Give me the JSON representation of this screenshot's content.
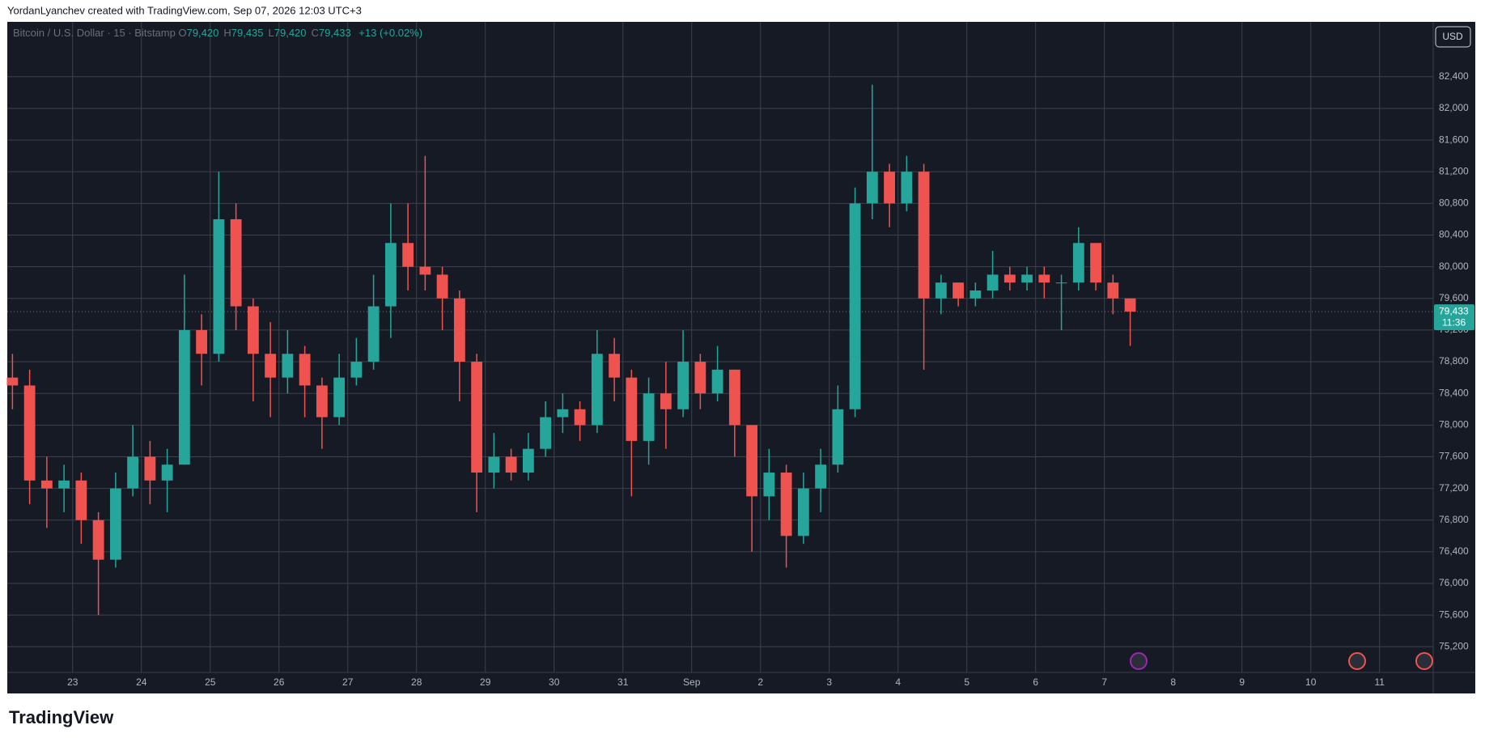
{
  "header": {
    "credit": "YordanLyanchev created with TradingView.com, Sep 07, 2026 12:03 UTC+3",
    "logo": "TradingView"
  },
  "chart_data": {
    "type": "candlestick",
    "symbol": "Bitcoin / U.S. Dollar · 15 · Bitstamp",
    "ohlc_legend": [
      {
        "label": "O",
        "value": "79,420"
      },
      {
        "label": "H",
        "value": "79,435"
      },
      {
        "label": "L",
        "value": "79,420"
      },
      {
        "label": "C",
        "value": "79,433"
      }
    ],
    "change": "+13 (+0.02%)",
    "currency": "USD",
    "last_price": {
      "value": 79433,
      "label": "79,433"
    },
    "countdown": "11:36",
    "up_color": "#26a69a",
    "down_color": "#ef5350",
    "x": [
      22.125,
      22.375,
      22.625,
      22.875,
      23.125,
      23.375,
      23.625,
      23.875,
      24.125,
      24.375,
      24.625,
      24.875,
      25.125,
      25.375,
      25.625,
      25.875,
      26.125,
      26.375,
      26.625,
      26.875,
      27.125,
      27.375,
      27.625,
      27.875,
      28.125,
      28.375,
      28.625,
      28.875,
      29.125,
      29.375,
      29.625,
      29.875,
      30.125,
      30.375,
      30.625,
      30.875,
      31.125,
      31.375,
      31.625,
      31.875,
      32.125,
      32.375,
      32.625,
      32.875,
      33.125,
      33.375,
      33.625,
      33.875,
      34.125,
      34.375,
      34.625,
      34.875,
      35.125,
      35.375,
      35.625,
      35.875,
      36.125,
      36.375,
      36.625,
      36.875,
      37.125,
      37.375,
      37.625,
      37.875,
      38.125,
      38.375
    ],
    "open": [
      78600,
      78500,
      77300,
      77200,
      77300,
      76800,
      76300,
      77200,
      77600,
      77300,
      77500,
      79200,
      78900,
      80600,
      79500,
      78900,
      78600,
      78900,
      78500,
      78100,
      78600,
      78800,
      79500,
      80300,
      80000,
      79900,
      79600,
      78800,
      77400,
      77600,
      77400,
      77700,
      78100,
      78200,
      78000,
      78900,
      78600,
      77800,
      78400,
      78200,
      78800,
      78400,
      78700,
      78000,
      77100,
      77400,
      76600,
      77200,
      77500,
      78200,
      80800,
      81200,
      80800,
      81200,
      79600,
      79800,
      79600,
      79700,
      79900,
      79800,
      79900,
      79800,
      79800,
      80300,
      79800,
      79600
    ],
    "high": [
      78900,
      78700,
      77600,
      77500,
      77400,
      76900,
      77400,
      78000,
      77800,
      77700,
      79900,
      79400,
      81200,
      80800,
      79600,
      79300,
      79200,
      79000,
      78600,
      78900,
      79100,
      79900,
      80800,
      80800,
      81400,
      80000,
      79700,
      78900,
      77900,
      77700,
      77900,
      78300,
      78400,
      78300,
      79200,
      79100,
      78700,
      78600,
      78800,
      79200,
      78900,
      79000,
      78700,
      78000,
      77700,
      77500,
      77400,
      77700,
      78500,
      81000,
      82300,
      81300,
      81400,
      81300,
      79900,
      79800,
      79800,
      80200,
      80000,
      80000,
      80000,
      79900,
      80500,
      80300,
      79900,
      79600
    ],
    "low": [
      78200,
      77000,
      76700,
      76900,
      76500,
      75600,
      76200,
      77100,
      77000,
      76900,
      77500,
      78500,
      78800,
      79200,
      78300,
      78100,
      78400,
      78100,
      77700,
      78000,
      78500,
      78700,
      79100,
      79700,
      79700,
      79200,
      78300,
      76900,
      77200,
      77300,
      77300,
      77600,
      77900,
      77800,
      77900,
      78300,
      77100,
      77500,
      77700,
      78100,
      78200,
      78300,
      77600,
      76400,
      76800,
      76200,
      76500,
      76900,
      77400,
      78100,
      80600,
      80500,
      80700,
      78700,
      79400,
      79500,
      79500,
      79600,
      79700,
      79700,
      79600,
      79200,
      79700,
      79700,
      79400,
      79000
    ],
    "close": [
      78500,
      77300,
      77200,
      77300,
      76800,
      76300,
      77200,
      77600,
      77300,
      77500,
      79200,
      78900,
      80600,
      79500,
      78900,
      78600,
      78900,
      78500,
      78100,
      78600,
      78800,
      79500,
      80300,
      80000,
      79900,
      79600,
      78800,
      77400,
      77600,
      77400,
      77700,
      78100,
      78200,
      78000,
      78900,
      78600,
      77800,
      78400,
      78200,
      78800,
      78400,
      78700,
      78000,
      77100,
      77400,
      76600,
      77200,
      77500,
      78200,
      80800,
      81200,
      80800,
      81200,
      79600,
      79800,
      79600,
      79700,
      79900,
      79800,
      79900,
      79800,
      79800,
      80300,
      79800,
      79600,
      79433
    ],
    "xlim": [
      22.05,
      42.78
    ],
    "xticks": [
      23,
      24,
      25,
      26,
      27,
      28,
      29,
      30,
      31,
      {
        "value": 32,
        "label": "Sep"
      },
      {
        "value": 33,
        "label": "2"
      },
      {
        "value": 34,
        "label": "3"
      },
      {
        "value": 35,
        "label": "4"
      },
      {
        "value": 36,
        "label": "5"
      },
      {
        "value": 37,
        "label": "6"
      },
      {
        "value": 38,
        "label": "7"
      },
      {
        "value": 39,
        "label": "8"
      },
      {
        "value": 40,
        "label": "9"
      },
      {
        "value": 41,
        "label": "10"
      },
      {
        "value": 42,
        "label": "11"
      }
    ],
    "ylim": [
      74876,
      83093
    ],
    "yticks": [
      {
        "value": 75200,
        "label": "75,200"
      },
      {
        "value": 75600,
        "label": "75,600"
      },
      {
        "value": 76000,
        "label": "76,000"
      },
      {
        "value": 76400,
        "label": "76,400"
      },
      {
        "value": 76800,
        "label": "76,800"
      },
      {
        "value": 77200,
        "label": "77,200"
      },
      {
        "value": 77600,
        "label": "77,600"
      },
      {
        "value": 78000,
        "label": "78,000"
      },
      {
        "value": 78400,
        "label": "78,400"
      },
      {
        "value": 78800,
        "label": "78,800"
      },
      {
        "value": 79200,
        "label": "79,200"
      },
      {
        "value": 79600,
        "label": "79,600"
      },
      {
        "value": 80000,
        "label": "80,000"
      },
      {
        "value": 80400,
        "label": "80,400"
      },
      {
        "value": 80800,
        "label": "80,800"
      },
      {
        "value": 81200,
        "label": "81,200"
      },
      {
        "value": 81600,
        "label": "81,600"
      },
      {
        "value": 82000,
        "label": "82,000"
      },
      {
        "value": 82400,
        "label": "82,400"
      }
    ],
    "grid": true
  }
}
